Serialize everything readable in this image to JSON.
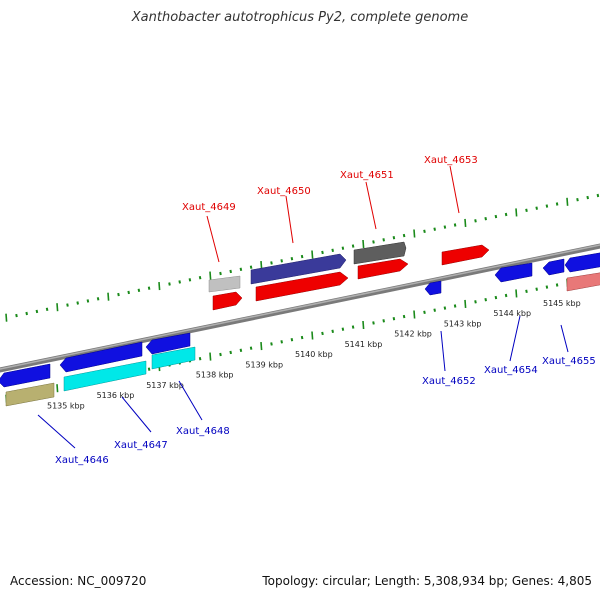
{
  "title": "Xanthobacter autotrophicus Py2, complete genome",
  "footer": {
    "accession": "Accession: NC_009720",
    "summary": "Topology: circular; Length: 5,308,934 bp; Genes: 4,805"
  },
  "scale_labels": [
    "5135 kbp",
    "5136 kbp",
    "5137 kbp",
    "5138 kbp",
    "5139 kbp",
    "5140 kbp",
    "5141 kbp",
    "5142 kbp",
    "5143 kbp",
    "5144 kbp",
    "5145 kbp"
  ],
  "genes_forward": [
    {
      "id": "Xaut_4649",
      "color": "#e00000"
    },
    {
      "id": "Xaut_4650",
      "color": "#e00000"
    },
    {
      "id": "Xaut_4651",
      "color": "#e00000"
    },
    {
      "id": "Xaut_4653",
      "color": "#e00000"
    }
  ],
  "genes_reverse": [
    {
      "id": "Xaut_4646",
      "color": "#0000c0"
    },
    {
      "id": "Xaut_4647",
      "color": "#0000c0"
    },
    {
      "id": "Xaut_4648",
      "color": "#0000c0"
    },
    {
      "id": "Xaut_4652",
      "color": "#0000c0"
    },
    {
      "id": "Xaut_4654",
      "color": "#0000c0"
    },
    {
      "id": "Xaut_4655",
      "color": "#0000c0"
    }
  ],
  "colors": {
    "backbone": "#8a8a8a",
    "tick": "#1a8a1a",
    "forward_label": "#e00000",
    "reverse_label": "#0000c0",
    "cog_blue": "#1010e0",
    "cog_navy": "#3a3a9a",
    "cog_gray": "#666666",
    "cog_lightgray": "#c0c0c0",
    "cog_cyan": "#00e8e8",
    "cog_khaki": "#b8b070",
    "cog_pink": "#e87878"
  }
}
